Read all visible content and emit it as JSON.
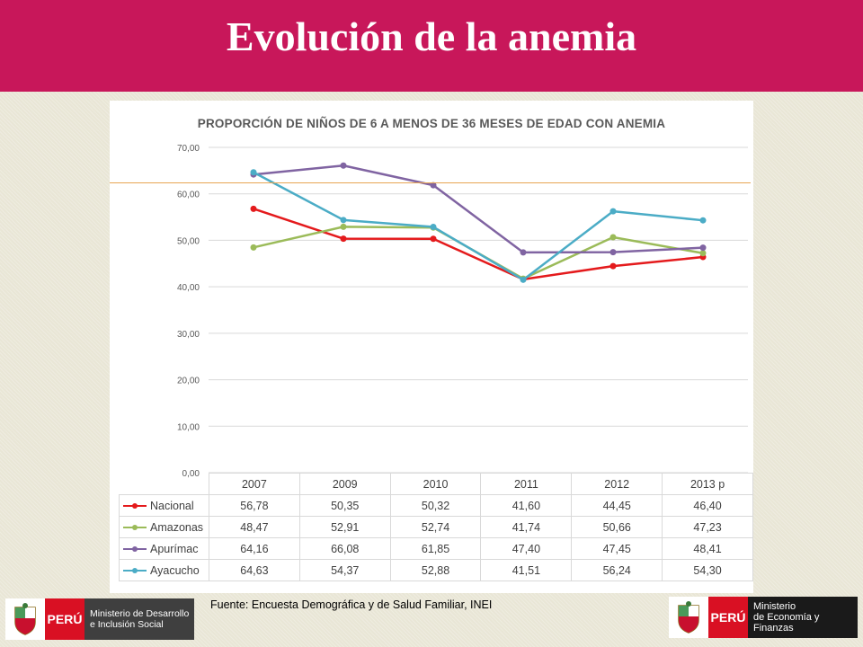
{
  "header": {
    "title": "Evolución de la anemia"
  },
  "chart_data": {
    "type": "line",
    "title": "PROPORCIÓN DE NIÑOS DE 6 A MENOS DE 36 MESES DE EDAD CON ANEMIA",
    "categories": [
      "2007",
      "2009",
      "2010",
      "2011",
      "2012",
      "2013 p"
    ],
    "ylim": [
      0,
      70
    ],
    "yticks": [
      "0,00",
      "10,00",
      "20,00",
      "30,00",
      "40,00",
      "50,00",
      "60,00",
      "70,00"
    ],
    "ytick_values": [
      0,
      10,
      20,
      30,
      40,
      50,
      60,
      70
    ],
    "grid": true,
    "series": [
      {
        "name": "Nacional",
        "color": "#e41a1c",
        "values": [
          56.78,
          50.35,
          50.32,
          41.6,
          44.45,
          46.4
        ],
        "labels": [
          "56,78",
          "50,35",
          "50,32",
          "41,60",
          "44,45",
          "46,40"
        ]
      },
      {
        "name": "Amazonas",
        "color": "#9bbb59",
        "values": [
          48.47,
          52.91,
          52.74,
          41.74,
          50.66,
          47.23
        ],
        "labels": [
          "48,47",
          "52,91",
          "52,74",
          "41,74",
          "50,66",
          "47,23"
        ]
      },
      {
        "name": "Apurímac",
        "color": "#8064a2",
        "values": [
          64.16,
          66.08,
          61.85,
          47.4,
          47.45,
          48.41
        ],
        "labels": [
          "64,16",
          "66,08",
          "61,85",
          "47,40",
          "47,45",
          "48,41"
        ]
      },
      {
        "name": "Ayacucho",
        "color": "#4bacc6",
        "values": [
          64.63,
          54.37,
          52.88,
          41.51,
          56.24,
          54.3
        ],
        "labels": [
          "64,63",
          "54,37",
          "52,88",
          "41,51",
          "56,24",
          "54,30"
        ]
      }
    ]
  },
  "decoration": {
    "glyph": ""
  },
  "footer": {
    "source": "Fuente: Encuesta Demográfica y de Salud Familiar, INEI",
    "logo_left": {
      "country": "PERÚ",
      "line1": "Ministerio de Desarrollo",
      "line2": "e Inclusión Social"
    },
    "logo_right": {
      "country": "PERÚ",
      "line1": "Ministerio",
      "line2": "de Economía y Finanzas"
    }
  }
}
